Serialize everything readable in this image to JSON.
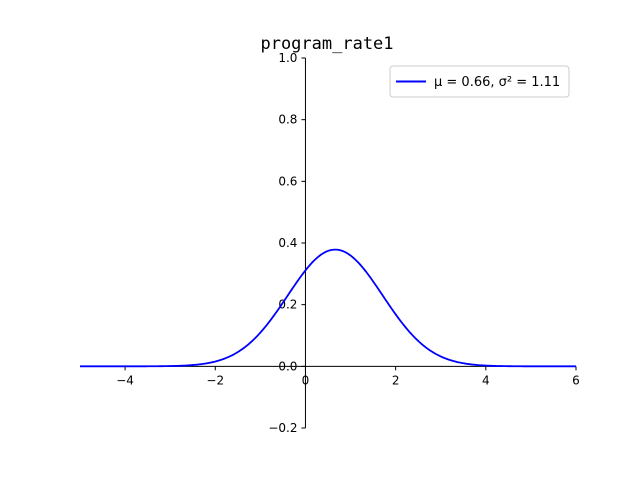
{
  "chart_data": {
    "type": "line",
    "title": "program_rate1",
    "xlabel": "",
    "ylabel": "",
    "xlim": [
      -5,
      6
    ],
    "ylim": [
      -0.2,
      1.0
    ],
    "x_ticks": [
      -4,
      -2,
      0,
      2,
      4,
      6
    ],
    "x_tick_labels": [
      "−4",
      "−2",
      "0",
      "2",
      "4",
      "6"
    ],
    "y_ticks": [
      -0.2,
      0.0,
      0.2,
      0.4,
      0.6,
      0.8,
      1.0
    ],
    "y_tick_labels": [
      "−0.2",
      "0.0",
      "0.2",
      "0.4",
      "0.6",
      "0.8",
      "1.0"
    ],
    "grid": false,
    "legend_position": "top-right",
    "series": [
      {
        "name": "μ = 0.66, σ² = 1.11",
        "color": "#0000ff",
        "distribution": "normal",
        "mu": 0.66,
        "sigma2": 1.11,
        "x": [
          -5,
          -4,
          -3,
          -2.5,
          -2,
          -1.5,
          -1,
          -0.5,
          0,
          0.25,
          0.5,
          0.66,
          0.75,
          1,
          1.5,
          2,
          2.5,
          3,
          3.5,
          4,
          5,
          6
        ],
        "y": [
          0.0,
          0.0002,
          0.009,
          0.0098,
          0.0157,
          0.0462,
          0.1101,
          0.2067,
          0.3125,
          0.3512,
          0.3745,
          0.3787,
          0.3782,
          0.3564,
          0.3067,
          0.1688,
          0.12,
          0.0307,
          0.0229,
          0.0024,
          0.0001,
          0.0
        ]
      }
    ]
  }
}
